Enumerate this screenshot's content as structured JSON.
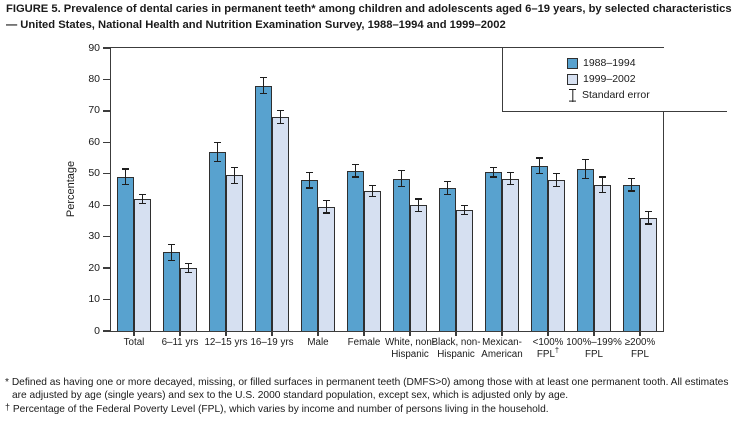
{
  "figure": {
    "title": "FIGURE 5. Prevalence of dental caries in permanent teeth* among children and adolescents aged 6–19 years, by selected characteristics — United States, National Health and Nutrition Examination Survey, 1988–1994 and 1999–2002"
  },
  "chart_data": {
    "type": "bar",
    "title": "",
    "xlabel": "",
    "ylabel": "Percentage",
    "ylim": [
      0,
      90
    ],
    "ytick_step": 10,
    "grid": false,
    "legend_position": "top-right-inside",
    "error_bars": true,
    "categories": [
      "Total",
      "6–11 yrs",
      "12–15 yrs",
      "16–19 yrs",
      "Male",
      "Female",
      "White, non-Hispanic",
      "Black, non-Hispanic",
      "Mexican-American",
      "<100% FPL†",
      "100%–199% FPL",
      "≥200% FPL"
    ],
    "category_label_lines": [
      [
        "Total"
      ],
      [
        "6–11 yrs"
      ],
      [
        "12–15 yrs"
      ],
      [
        "16–19 yrs"
      ],
      [
        "Male"
      ],
      [
        "Female"
      ],
      [
        "White, non-",
        "Hispanic"
      ],
      [
        "Black, non-",
        "Hispanic"
      ],
      [
        "Mexican-",
        "American"
      ],
      [
        "<100%",
        "FPL†"
      ],
      [
        "100%–199%",
        "FPL"
      ],
      [
        "≥200%",
        "FPL"
      ]
    ],
    "series": [
      {
        "name": "1988–1994",
        "color": "#58a2cf",
        "values": [
          49,
          25,
          57,
          78,
          48,
          51,
          48.5,
          45.5,
          50.5,
          52.5,
          51.5,
          46.5
        ],
        "standard_errors": [
          2.5,
          2.5,
          3,
          2.5,
          2.5,
          2,
          2.5,
          2,
          1.5,
          2.5,
          3,
          2
        ]
      },
      {
        "name": "1999–2002",
        "color": "#d6e0f1",
        "values": [
          42,
          20,
          49.5,
          68,
          39.5,
          44.5,
          40,
          38.5,
          48.5,
          48,
          46.5,
          36
        ],
        "standard_errors": [
          1.5,
          1.5,
          2.5,
          2,
          2,
          1.8,
          2,
          1.5,
          2,
          2,
          2.5,
          2
        ]
      }
    ],
    "legend_items": [
      "1988–1994",
      "1999–2002",
      "Standard error"
    ]
  },
  "legend": {
    "series1_label": "1988–1994",
    "series2_label": "1999–2002",
    "se_label": "Standard error"
  },
  "footnotes": [
    {
      "marker": "*",
      "text": "Defined as having one or more decayed, missing, or filled surfaces in permanent teeth (DMFS>0) among those with at least one permanent tooth. All estimates are adjusted by age (single years) and sex to the U.S. 2000 standard population, except sex, which is adjusted only by age."
    },
    {
      "marker": "†",
      "text": "Percentage of the Federal Poverty Level (FPL), which varies by income and number of persons living in the household."
    }
  ],
  "colors": {
    "series1_fill": "#58a2cf",
    "series2_fill": "#d6e0f1",
    "bar_outline": "#2f2f2f",
    "axis": "#3c3c3c",
    "text": "#1a1a1a"
  }
}
